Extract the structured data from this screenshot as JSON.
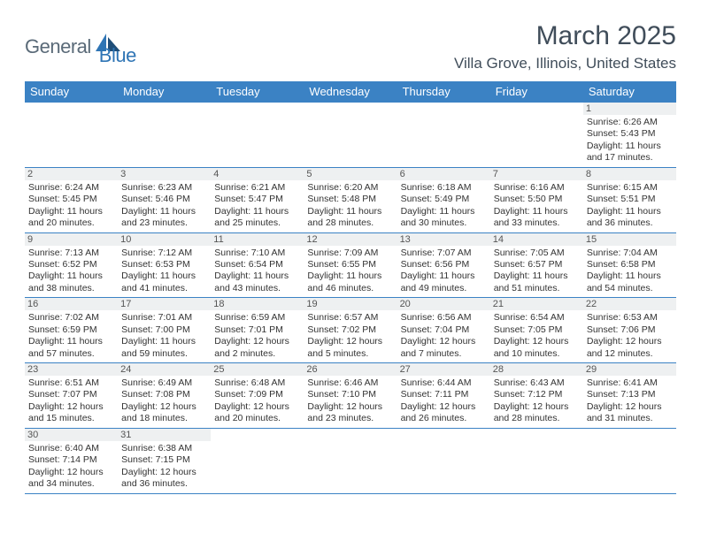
{
  "logo": {
    "part1": "General",
    "part2": "Blue"
  },
  "title": "March 2025",
  "location": "Villa Grove, Illinois, United States",
  "colors": {
    "header_bg": "#3b82c4",
    "header_text": "#ffffff",
    "border": "#3b82c4",
    "daynum_bg": "#eef0f1",
    "logo_gray": "#5a6a78",
    "logo_blue": "#2f75b5",
    "title_color": "#404d5a"
  },
  "weekdays": [
    "Sunday",
    "Monday",
    "Tuesday",
    "Wednesday",
    "Thursday",
    "Friday",
    "Saturday"
  ],
  "weeks": [
    [
      null,
      null,
      null,
      null,
      null,
      null,
      {
        "n": "1",
        "sr": "Sunrise: 6:26 AM",
        "ss": "Sunset: 5:43 PM",
        "d1": "Daylight: 11 hours",
        "d2": "and 17 minutes."
      }
    ],
    [
      {
        "n": "2",
        "sr": "Sunrise: 6:24 AM",
        "ss": "Sunset: 5:45 PM",
        "d1": "Daylight: 11 hours",
        "d2": "and 20 minutes."
      },
      {
        "n": "3",
        "sr": "Sunrise: 6:23 AM",
        "ss": "Sunset: 5:46 PM",
        "d1": "Daylight: 11 hours",
        "d2": "and 23 minutes."
      },
      {
        "n": "4",
        "sr": "Sunrise: 6:21 AM",
        "ss": "Sunset: 5:47 PM",
        "d1": "Daylight: 11 hours",
        "d2": "and 25 minutes."
      },
      {
        "n": "5",
        "sr": "Sunrise: 6:20 AM",
        "ss": "Sunset: 5:48 PM",
        "d1": "Daylight: 11 hours",
        "d2": "and 28 minutes."
      },
      {
        "n": "6",
        "sr": "Sunrise: 6:18 AM",
        "ss": "Sunset: 5:49 PM",
        "d1": "Daylight: 11 hours",
        "d2": "and 30 minutes."
      },
      {
        "n": "7",
        "sr": "Sunrise: 6:16 AM",
        "ss": "Sunset: 5:50 PM",
        "d1": "Daylight: 11 hours",
        "d2": "and 33 minutes."
      },
      {
        "n": "8",
        "sr": "Sunrise: 6:15 AM",
        "ss": "Sunset: 5:51 PM",
        "d1": "Daylight: 11 hours",
        "d2": "and 36 minutes."
      }
    ],
    [
      {
        "n": "9",
        "sr": "Sunrise: 7:13 AM",
        "ss": "Sunset: 6:52 PM",
        "d1": "Daylight: 11 hours",
        "d2": "and 38 minutes."
      },
      {
        "n": "10",
        "sr": "Sunrise: 7:12 AM",
        "ss": "Sunset: 6:53 PM",
        "d1": "Daylight: 11 hours",
        "d2": "and 41 minutes."
      },
      {
        "n": "11",
        "sr": "Sunrise: 7:10 AM",
        "ss": "Sunset: 6:54 PM",
        "d1": "Daylight: 11 hours",
        "d2": "and 43 minutes."
      },
      {
        "n": "12",
        "sr": "Sunrise: 7:09 AM",
        "ss": "Sunset: 6:55 PM",
        "d1": "Daylight: 11 hours",
        "d2": "and 46 minutes."
      },
      {
        "n": "13",
        "sr": "Sunrise: 7:07 AM",
        "ss": "Sunset: 6:56 PM",
        "d1": "Daylight: 11 hours",
        "d2": "and 49 minutes."
      },
      {
        "n": "14",
        "sr": "Sunrise: 7:05 AM",
        "ss": "Sunset: 6:57 PM",
        "d1": "Daylight: 11 hours",
        "d2": "and 51 minutes."
      },
      {
        "n": "15",
        "sr": "Sunrise: 7:04 AM",
        "ss": "Sunset: 6:58 PM",
        "d1": "Daylight: 11 hours",
        "d2": "and 54 minutes."
      }
    ],
    [
      {
        "n": "16",
        "sr": "Sunrise: 7:02 AM",
        "ss": "Sunset: 6:59 PM",
        "d1": "Daylight: 11 hours",
        "d2": "and 57 minutes."
      },
      {
        "n": "17",
        "sr": "Sunrise: 7:01 AM",
        "ss": "Sunset: 7:00 PM",
        "d1": "Daylight: 11 hours",
        "d2": "and 59 minutes."
      },
      {
        "n": "18",
        "sr": "Sunrise: 6:59 AM",
        "ss": "Sunset: 7:01 PM",
        "d1": "Daylight: 12 hours",
        "d2": "and 2 minutes."
      },
      {
        "n": "19",
        "sr": "Sunrise: 6:57 AM",
        "ss": "Sunset: 7:02 PM",
        "d1": "Daylight: 12 hours",
        "d2": "and 5 minutes."
      },
      {
        "n": "20",
        "sr": "Sunrise: 6:56 AM",
        "ss": "Sunset: 7:04 PM",
        "d1": "Daylight: 12 hours",
        "d2": "and 7 minutes."
      },
      {
        "n": "21",
        "sr": "Sunrise: 6:54 AM",
        "ss": "Sunset: 7:05 PM",
        "d1": "Daylight: 12 hours",
        "d2": "and 10 minutes."
      },
      {
        "n": "22",
        "sr": "Sunrise: 6:53 AM",
        "ss": "Sunset: 7:06 PM",
        "d1": "Daylight: 12 hours",
        "d2": "and 12 minutes."
      }
    ],
    [
      {
        "n": "23",
        "sr": "Sunrise: 6:51 AM",
        "ss": "Sunset: 7:07 PM",
        "d1": "Daylight: 12 hours",
        "d2": "and 15 minutes."
      },
      {
        "n": "24",
        "sr": "Sunrise: 6:49 AM",
        "ss": "Sunset: 7:08 PM",
        "d1": "Daylight: 12 hours",
        "d2": "and 18 minutes."
      },
      {
        "n": "25",
        "sr": "Sunrise: 6:48 AM",
        "ss": "Sunset: 7:09 PM",
        "d1": "Daylight: 12 hours",
        "d2": "and 20 minutes."
      },
      {
        "n": "26",
        "sr": "Sunrise: 6:46 AM",
        "ss": "Sunset: 7:10 PM",
        "d1": "Daylight: 12 hours",
        "d2": "and 23 minutes."
      },
      {
        "n": "27",
        "sr": "Sunrise: 6:44 AM",
        "ss": "Sunset: 7:11 PM",
        "d1": "Daylight: 12 hours",
        "d2": "and 26 minutes."
      },
      {
        "n": "28",
        "sr": "Sunrise: 6:43 AM",
        "ss": "Sunset: 7:12 PM",
        "d1": "Daylight: 12 hours",
        "d2": "and 28 minutes."
      },
      {
        "n": "29",
        "sr": "Sunrise: 6:41 AM",
        "ss": "Sunset: 7:13 PM",
        "d1": "Daylight: 12 hours",
        "d2": "and 31 minutes."
      }
    ],
    [
      {
        "n": "30",
        "sr": "Sunrise: 6:40 AM",
        "ss": "Sunset: 7:14 PM",
        "d1": "Daylight: 12 hours",
        "d2": "and 34 minutes."
      },
      {
        "n": "31",
        "sr": "Sunrise: 6:38 AM",
        "ss": "Sunset: 7:15 PM",
        "d1": "Daylight: 12 hours",
        "d2": "and 36 minutes."
      },
      null,
      null,
      null,
      null,
      null
    ]
  ]
}
